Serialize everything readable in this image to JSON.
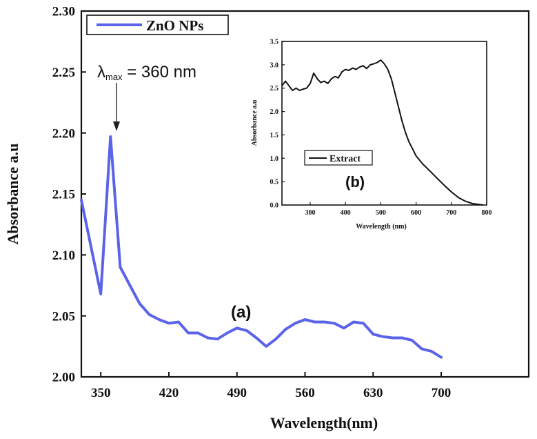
{
  "chart_data": [
    {
      "type": "line",
      "title": "",
      "xlabel": "Wavelength(nm)",
      "ylabel": "Absorbance a.u",
      "xlim": [
        330,
        790
      ],
      "ylim": [
        2.0,
        2.3
      ],
      "xticks": [
        350,
        420,
        490,
        560,
        630,
        700
      ],
      "yticks": [
        2.0,
        2.05,
        2.1,
        2.15,
        2.2,
        2.25,
        2.3
      ],
      "xtick_labels": [
        "350",
        "420",
        "490",
        "560",
        "630",
        "700"
      ],
      "ytick_labels": [
        "2.00",
        "2.05",
        "2.10",
        "2.15",
        "2.20",
        "2.25",
        "2.30"
      ],
      "legend": {
        "label": "ZnO NPs",
        "placement": "top-left"
      },
      "panel_label": "(a)",
      "annotation": {
        "symbol": "λ",
        "subscript": "max",
        "text": " = 360 nm",
        "x": 360,
        "y": 2.197
      },
      "series": [
        {
          "name": "ZnO NPs",
          "color": "#5b63e8",
          "x": [
            330,
            350,
            360,
            370,
            380,
            390,
            400,
            410,
            420,
            430,
            440,
            450,
            460,
            470,
            480,
            490,
            500,
            510,
            520,
            530,
            540,
            550,
            560,
            570,
            580,
            590,
            600,
            610,
            620,
            630,
            640,
            650,
            660,
            670,
            680,
            690,
            700
          ],
          "y": [
            2.145,
            2.068,
            2.197,
            2.09,
            2.075,
            2.06,
            2.051,
            2.047,
            2.044,
            2.045,
            2.036,
            2.036,
            2.032,
            2.031,
            2.036,
            2.04,
            2.038,
            2.032,
            2.025,
            2.031,
            2.039,
            2.044,
            2.047,
            2.045,
            2.045,
            2.044,
            2.04,
            2.045,
            2.044,
            2.035,
            2.033,
            2.032,
            2.032,
            2.03,
            2.023,
            2.021,
            2.016
          ]
        }
      ]
    },
    {
      "type": "line",
      "title": "",
      "xlabel": "Wavelength (nm)",
      "ylabel": "Absorbance a.u",
      "xlim": [
        220,
        800
      ],
      "ylim": [
        0.0,
        3.5
      ],
      "xticks": [
        300,
        400,
        500,
        600,
        700,
        800
      ],
      "yticks": [
        0.0,
        0.5,
        1.0,
        1.5,
        2.0,
        2.5,
        3.0,
        3.5
      ],
      "xtick_labels": [
        "300",
        "400",
        "500",
        "600",
        "700",
        "800"
      ],
      "ytick_labels": [
        "0.0",
        "0.5",
        "1.0",
        "1.5",
        "2.0",
        "2.5",
        "3.0",
        "3.5"
      ],
      "legend": {
        "label": "Extract",
        "placement": "bottom-left"
      },
      "panel_label": "(b)",
      "series": [
        {
          "name": "Extract",
          "color": "#111111",
          "x": [
            220,
            230,
            240,
            250,
            260,
            270,
            280,
            290,
            300,
            310,
            320,
            330,
            340,
            350,
            360,
            370,
            380,
            390,
            400,
            410,
            420,
            430,
            440,
            450,
            460,
            470,
            480,
            490,
            500,
            510,
            520,
            530,
            540,
            550,
            560,
            570,
            580,
            590,
            600,
            620,
            640,
            660,
            680,
            700,
            720,
            740,
            760,
            780,
            790
          ],
          "y": [
            2.55,
            2.65,
            2.55,
            2.45,
            2.5,
            2.45,
            2.48,
            2.5,
            2.6,
            2.82,
            2.7,
            2.62,
            2.65,
            2.6,
            2.7,
            2.75,
            2.72,
            2.85,
            2.9,
            2.88,
            2.93,
            2.9,
            2.95,
            2.98,
            2.92,
            3.0,
            3.02,
            3.05,
            3.1,
            3.02,
            2.9,
            2.7,
            2.4,
            2.1,
            1.8,
            1.55,
            1.35,
            1.2,
            1.05,
            0.87,
            0.72,
            0.57,
            0.42,
            0.28,
            0.16,
            0.08,
            0.03,
            0.01,
            0.0
          ]
        }
      ]
    }
  ]
}
